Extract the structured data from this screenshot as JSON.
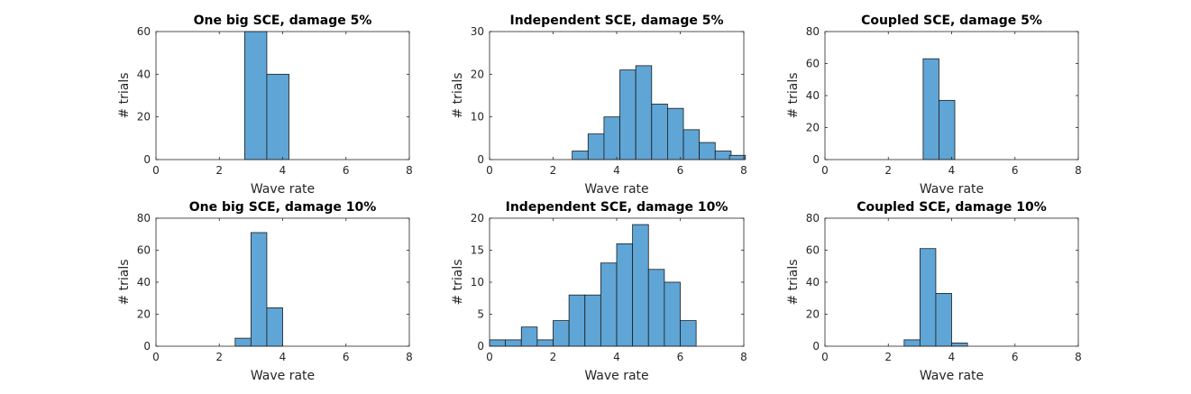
{
  "colors": {
    "bar_fill": "#5fa5d6",
    "bar_edge": "#1a1a1a",
    "axis": "#262626",
    "title": "#000000"
  },
  "chart_data": [
    {
      "type": "bar",
      "title": "One big SCE, damage 5%",
      "xlabel": "Wave rate",
      "ylabel": "# trials",
      "xlim": [
        0,
        8
      ],
      "ylim": [
        0,
        60
      ],
      "xticks": [
        "0",
        "2",
        "4",
        "6",
        "8"
      ],
      "yticks": [
        "0",
        "20",
        "40",
        "60"
      ],
      "bin_width": 0.7,
      "bins": [
        {
          "x": 3.15,
          "value": 60
        },
        {
          "x": 3.85,
          "value": 40
        }
      ]
    },
    {
      "type": "bar",
      "title": "Independent SCE, damage 5%",
      "xlabel": "Wave rate",
      "ylabel": "# trials",
      "xlim": [
        0,
        8
      ],
      "ylim": [
        0,
        30
      ],
      "xticks": [
        "0",
        "2",
        "4",
        "6",
        "8"
      ],
      "yticks": [
        "0",
        "10",
        "20",
        "30"
      ],
      "bin_width": 0.5,
      "bins": [
        {
          "x": 2.85,
          "value": 2
        },
        {
          "x": 3.35,
          "value": 6
        },
        {
          "x": 3.85,
          "value": 10
        },
        {
          "x": 4.35,
          "value": 21
        },
        {
          "x": 4.85,
          "value": 22
        },
        {
          "x": 5.35,
          "value": 13
        },
        {
          "x": 5.85,
          "value": 12
        },
        {
          "x": 6.35,
          "value": 7
        },
        {
          "x": 6.85,
          "value": 4
        },
        {
          "x": 7.35,
          "value": 2
        },
        {
          "x": 7.8,
          "value": 1
        }
      ]
    },
    {
      "type": "bar",
      "title": "Coupled SCE, damage 5%",
      "xlabel": "Wave rate",
      "ylabel": "# trials",
      "xlim": [
        0,
        8
      ],
      "ylim": [
        0,
        80
      ],
      "xticks": [
        "0",
        "2",
        "4",
        "6",
        "8"
      ],
      "yticks": [
        "0",
        "20",
        "40",
        "60",
        "80"
      ],
      "bin_width": 0.5,
      "bins": [
        {
          "x": 3.35,
          "value": 63
        },
        {
          "x": 3.85,
          "value": 37
        }
      ]
    },
    {
      "type": "bar",
      "title": "One big SCE, damage 10%",
      "xlabel": "Wave rate",
      "ylabel": "# trials",
      "xlim": [
        0,
        8
      ],
      "ylim": [
        0,
        80
      ],
      "xticks": [
        "0",
        "2",
        "4",
        "6",
        "8"
      ],
      "yticks": [
        "0",
        "20",
        "40",
        "60",
        "80"
      ],
      "bin_width": 0.5,
      "bins": [
        {
          "x": 2.75,
          "value": 5
        },
        {
          "x": 3.25,
          "value": 71
        },
        {
          "x": 3.75,
          "value": 24
        }
      ]
    },
    {
      "type": "bar",
      "title": "Independent SCE, damage 10%",
      "xlabel": "Wave rate",
      "ylabel": "# trials",
      "xlim": [
        0,
        8
      ],
      "ylim": [
        0,
        20
      ],
      "xticks": [
        "0",
        "2",
        "4",
        "6",
        "8"
      ],
      "yticks": [
        "0",
        "5",
        "10",
        "15",
        "20"
      ],
      "bin_width": 0.5,
      "bins": [
        {
          "x": 0.25,
          "value": 1
        },
        {
          "x": 0.75,
          "value": 1
        },
        {
          "x": 1.25,
          "value": 3
        },
        {
          "x": 1.75,
          "value": 1
        },
        {
          "x": 2.25,
          "value": 4
        },
        {
          "x": 2.75,
          "value": 8
        },
        {
          "x": 3.25,
          "value": 8
        },
        {
          "x": 3.75,
          "value": 13
        },
        {
          "x": 4.25,
          "value": 16
        },
        {
          "x": 4.75,
          "value": 19
        },
        {
          "x": 5.25,
          "value": 12
        },
        {
          "x": 5.75,
          "value": 10
        },
        {
          "x": 6.25,
          "value": 4
        }
      ]
    },
    {
      "type": "bar",
      "title": "Coupled SCE, damage 10%",
      "xlabel": "Wave rate",
      "ylabel": "# trials",
      "xlim": [
        0,
        8
      ],
      "ylim": [
        0,
        80
      ],
      "xticks": [
        "0",
        "2",
        "4",
        "6",
        "8"
      ],
      "yticks": [
        "0",
        "20",
        "40",
        "60",
        "80"
      ],
      "bin_width": 0.5,
      "bins": [
        {
          "x": 2.75,
          "value": 4
        },
        {
          "x": 3.25,
          "value": 61
        },
        {
          "x": 3.75,
          "value": 33
        },
        {
          "x": 4.25,
          "value": 2
        }
      ]
    }
  ]
}
